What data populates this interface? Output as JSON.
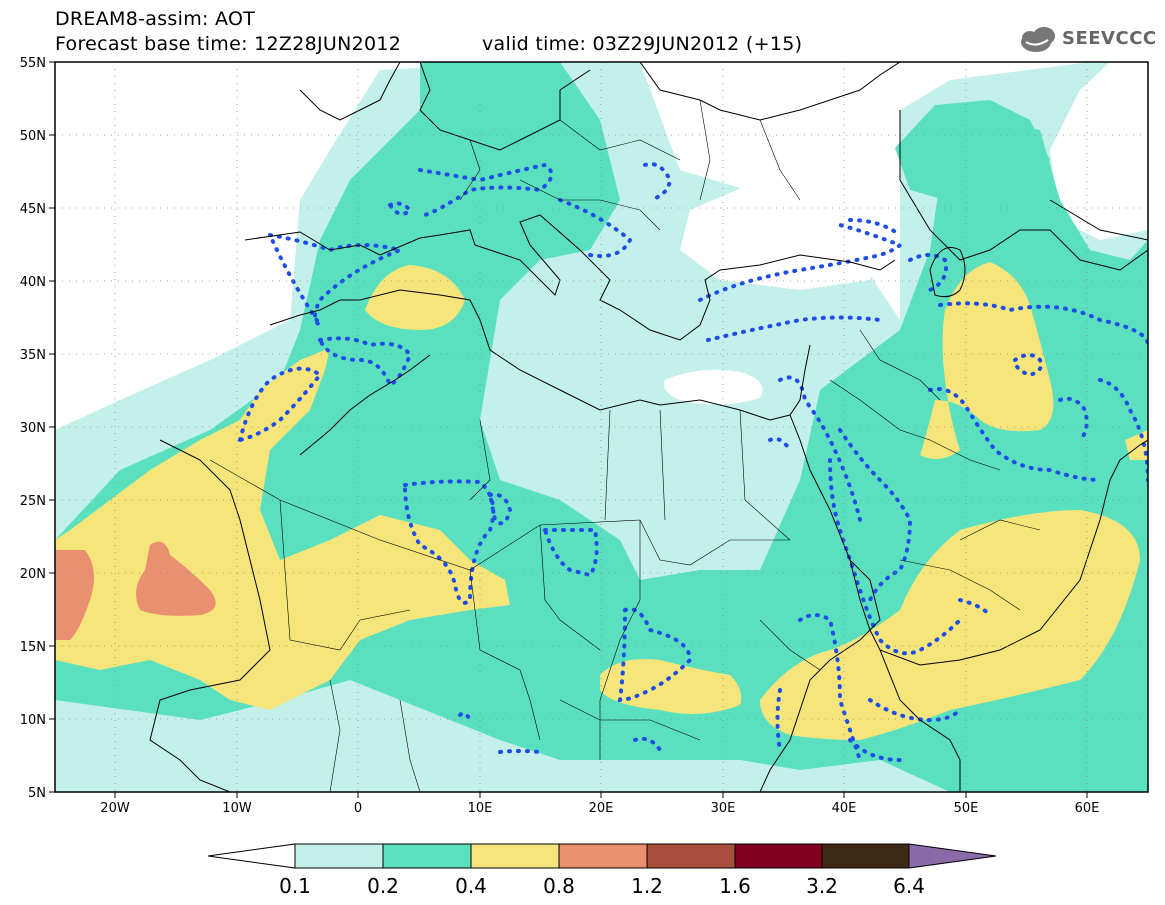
{
  "header": {
    "line1": "DREAM8-assim: AOT",
    "line2": "Forecast base time: 12Z28JUN2012",
    "valid": "valid time: 03Z29JUN2012 (+15)",
    "logo": "SEEVCCC"
  },
  "map": {
    "lat_labels": [
      "55N",
      "50N",
      "45N",
      "40N",
      "35N",
      "30N",
      "25N",
      "20N",
      "15N",
      "10N",
      "5N"
    ],
    "lon_labels": [
      "20W",
      "10W",
      "0",
      "10E",
      "20E",
      "30E",
      "40E",
      "50E",
      "60E"
    ],
    "lat_range": [
      5,
      55
    ],
    "lon_range": [
      -25,
      65
    ]
  },
  "colorbar": {
    "labels": [
      "0.1",
      "0.2",
      "0.4",
      "0.8",
      "1.2",
      "1.6",
      "3.2",
      "6.4"
    ],
    "colors": [
      "#c4f0ec",
      "#5be0bf",
      "#f5e57a",
      "#e89070",
      "#a84e3a",
      "#800020",
      "#3e2a14",
      "#8a6aa8"
    ]
  }
}
